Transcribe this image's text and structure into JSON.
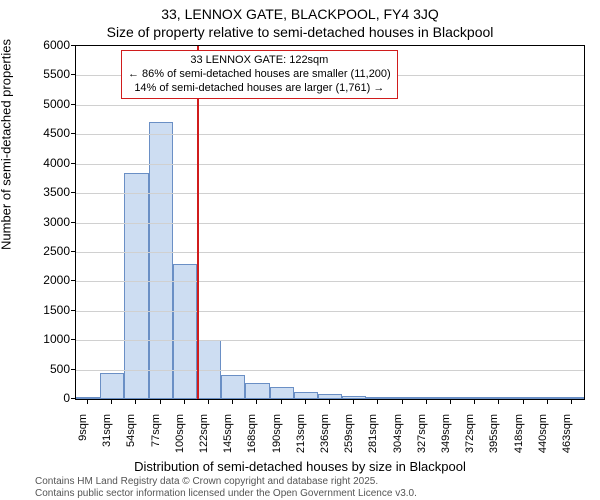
{
  "chart": {
    "type": "histogram",
    "title": "33, LENNOX GATE, BLACKPOOL, FY4 3JQ",
    "subtitle": "Size of property relative to semi-detached houses in Blackpool",
    "ylabel": "Number of semi-detached properties",
    "xlabel": "Distribution of semi-detached houses by size in Blackpool",
    "background_color": "#ffffff",
    "grid_color": "#d0d0d0",
    "border_color": "#000000",
    "ylim": [
      0,
      6000
    ],
    "ytick_step": 500,
    "yticks": [
      0,
      500,
      1000,
      1500,
      2000,
      2500,
      3000,
      3500,
      4000,
      4500,
      5000,
      5500,
      6000
    ],
    "xtick_labels": [
      "9sqm",
      "31sqm",
      "54sqm",
      "77sqm",
      "100sqm",
      "122sqm",
      "145sqm",
      "168sqm",
      "190sqm",
      "213sqm",
      "236sqm",
      "259sqm",
      "281sqm",
      "304sqm",
      "327sqm",
      "349sqm",
      "372sqm",
      "395sqm",
      "418sqm",
      "440sqm",
      "463sqm"
    ],
    "bars": [
      {
        "value": 20
      },
      {
        "value": 450
      },
      {
        "value": 3850
      },
      {
        "value": 4700
      },
      {
        "value": 2300
      },
      {
        "value": 1000
      },
      {
        "value": 400
      },
      {
        "value": 280
      },
      {
        "value": 200
      },
      {
        "value": 120
      },
      {
        "value": 90
      },
      {
        "value": 50
      },
      {
        "value": 40
      },
      {
        "value": 30
      },
      {
        "value": 20
      },
      {
        "value": 15
      },
      {
        "value": 10
      },
      {
        "value": 8
      },
      {
        "value": 6
      },
      {
        "value": 5
      },
      {
        "value": 4
      }
    ],
    "bar_fill": "#cdddf2",
    "bar_border": "#6a8fc5",
    "reference_line": {
      "position_index": 5,
      "color": "#d01c1c"
    },
    "annotation": {
      "border_color": "#d01c1c",
      "lines": [
        "33 LENNOX GATE: 122sqm",
        "← 86% of semi-detached houses are smaller (11,200)",
        "14% of semi-detached houses are larger (1,761) →"
      ]
    },
    "footer_line1": "Contains HM Land Registry data © Crown copyright and database right 2025.",
    "footer_line2": "Contains public sector information licensed under the Open Government Licence v3.0."
  }
}
